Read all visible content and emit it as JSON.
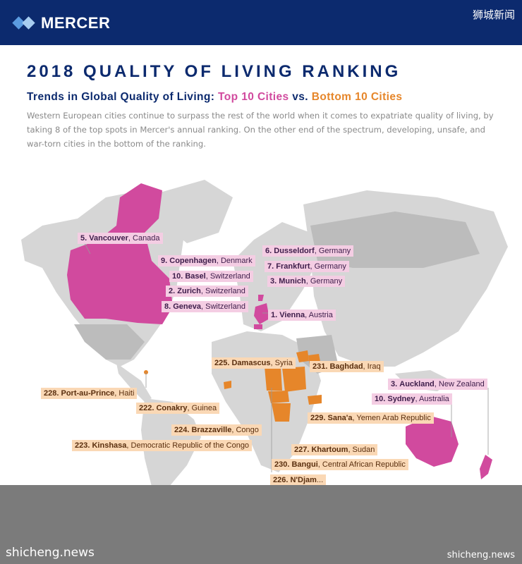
{
  "header": {
    "brand": "MERCER",
    "watermark_top": "狮城新闻"
  },
  "title": "2018 QUALITY OF LIVING RANKING",
  "subtitle": {
    "prefix": "Trends in Global Quality of Living: ",
    "top": "Top 10 Cities",
    "mid": " vs. ",
    "bottom": "Bottom 10 Cities"
  },
  "description": "Western European cities continue to surpass the rest of the world when it comes to expatriate quality of living, by taking 8 of the top spots in Mercer's annual ranking. On the other end of the spectrum, developing, unsafe, and war-torn cities in the bottom of the ranking.",
  "colors": {
    "top_cities": "#d14a9e",
    "bottom_cities": "#e6862a",
    "land": "#d6d6d6",
    "header_bg": "#0c2a6e"
  },
  "top_cities": [
    {
      "rank": "5.",
      "city": "Vancouver",
      "country": ", Canada"
    },
    {
      "rank": "9.",
      "city": "Copenhagen",
      "country": ", Denmark"
    },
    {
      "rank": "10.",
      "city": "Basel",
      "country": ", Switzerland"
    },
    {
      "rank": "2.",
      "city": "Zurich",
      "country": ", Switzerland"
    },
    {
      "rank": "8.",
      "city": "Geneva",
      "country": ", Switzerland"
    },
    {
      "rank": "6.",
      "city": "Dusseldorf",
      "country": ", Germany"
    },
    {
      "rank": "7.",
      "city": "Frankfurt",
      "country": ", Germany"
    },
    {
      "rank": "3.",
      "city": "Munich",
      "country": ", Germany"
    },
    {
      "rank": "1.",
      "city": "Vienna",
      "country": ", Austria"
    },
    {
      "rank": "3.",
      "city": "Auckland",
      "country": ", New Zealand"
    },
    {
      "rank": "10.",
      "city": "Sydney",
      "country": ", Australia"
    }
  ],
  "bottom_cities": [
    {
      "rank": "225.",
      "city": "Damascus",
      "country": ", Syria"
    },
    {
      "rank": "231.",
      "city": "Baghdad",
      "country": ", Iraq"
    },
    {
      "rank": "228.",
      "city": "Port-au-Prince",
      "country": ", Haiti"
    },
    {
      "rank": "222.",
      "city": "Conakry",
      "country": ", Guinea"
    },
    {
      "rank": "229.",
      "city": "Sana'a",
      "country": ", Yemen Arab Republic"
    },
    {
      "rank": "224.",
      "city": "Brazzaville",
      "country": ", Congo"
    },
    {
      "rank": "223.",
      "city": "Kinshasa",
      "country": ", Democratic Republic of the Congo"
    },
    {
      "rank": "227.",
      "city": "Khartoum",
      "country": ", Sudan"
    },
    {
      "rank": "230.",
      "city": "Bangui",
      "country": ", Central African Republic"
    },
    {
      "rank": "226.",
      "city": "N'Djam",
      "country": "..."
    }
  ],
  "watermark_left": "shicheng.news",
  "watermark_right": "shicheng.news"
}
